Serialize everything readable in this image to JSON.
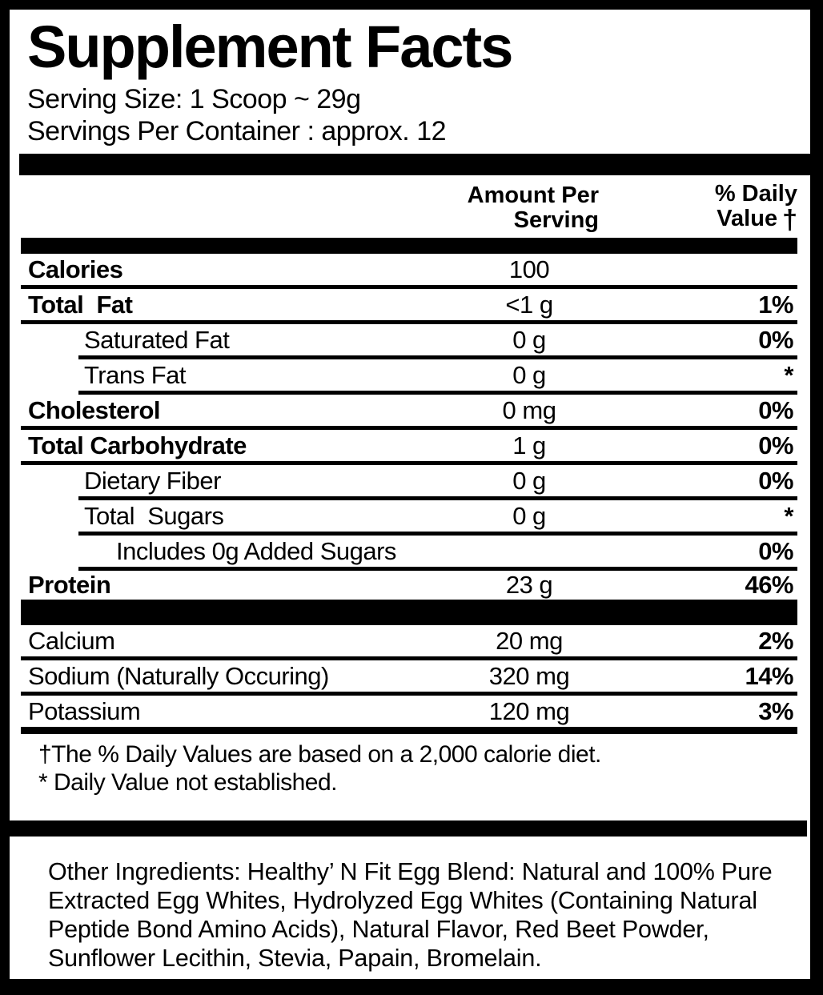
{
  "label": {
    "title": "Supplement Facts",
    "serving_size": "Serving Size: 1 Scoop ~ 29g",
    "servings_per_container": "Servings Per Container : approx. 12",
    "header": {
      "amount_line1": "Amount Per",
      "amount_line2": "Serving",
      "dv_line1": "% Daily",
      "dv_line2": "Value",
      "dagger": "†"
    },
    "rows": [
      {
        "name": "Calories",
        "amount": "100",
        "dv": ""
      },
      {
        "name": "Total  Fat",
        "amount": "<1 g",
        "dv": "1%"
      },
      {
        "name": "Saturated Fat",
        "amount": "0 g",
        "dv": "0%"
      },
      {
        "name": "Trans Fat",
        "amount": "0 g",
        "dv": "*"
      },
      {
        "name": "Cholesterol",
        "amount": "0 mg",
        "dv": "0%"
      },
      {
        "name": "Total Carbohydrate",
        "amount": "1 g",
        "dv": "0%"
      },
      {
        "name": "Dietary Fiber",
        "amount": "0 g",
        "dv": "0%"
      },
      {
        "name": "Total  Sugars",
        "amount": "0 g",
        "dv": "*"
      },
      {
        "name": "Includes 0g Added Sugars",
        "amount": "",
        "dv": "0%"
      },
      {
        "name": "Protein",
        "amount": "23 g",
        "dv": "46%"
      },
      {
        "name": "Calcium",
        "amount": "20 mg",
        "dv": "2%"
      },
      {
        "name": "Sodium (Naturally Occuring)",
        "amount": "320 mg",
        "dv": "14%"
      },
      {
        "name": "Potassium",
        "amount": "120 mg",
        "dv": "3%"
      }
    ],
    "footnotes": {
      "daily_values": "†The % Daily Values are based on a 2,000 calorie diet.",
      "not_established": "* Daily Value not established."
    },
    "other_ingredients": "Other Ingredients: Healthy’ N Fit Egg Blend: Natural and 100% Pure Extracted Egg Whites, Hydrolyzed Egg Whites (Containing Natural Peptide Bond Amino Acids), Natural Flavor, Red Beet Powder, Sunflower Lecithin, Stevia, Papain, Bromelain.",
    "colors": {
      "text": "#000000",
      "background": "#ffffff"
    }
  }
}
